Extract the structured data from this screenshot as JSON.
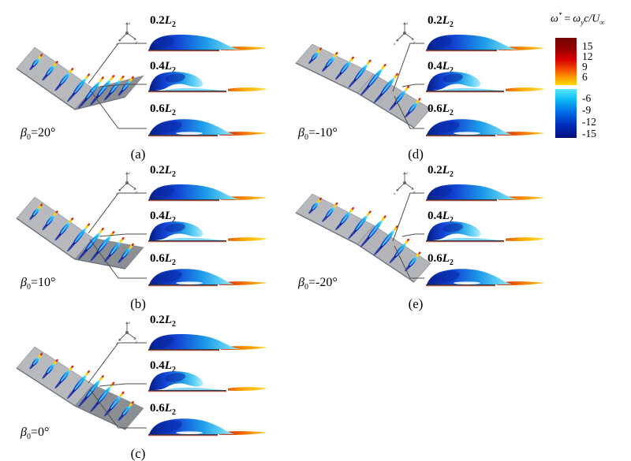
{
  "colorbar": {
    "title": {
      "omega": "ω",
      "star": "*",
      "equals": "=",
      "omega2": "ω",
      "sub_y": "y",
      "c_slash_u": "c/U",
      "sub_inf": "∞"
    },
    "ticks_pos": [
      "15",
      "12",
      "9",
      "6"
    ],
    "ticks_neg": [
      "-6",
      "-9",
      "-12",
      "-15"
    ],
    "colors": {
      "pos_top": "#6f0502",
      "pos_bottom": "#ffd90a",
      "neg_top": "#59eafa",
      "neg_bottom": "#000e78"
    }
  },
  "axes_triad": {
    "x": "x",
    "y": "y",
    "z": "z"
  },
  "vortex_colors": {
    "deep_blue": "#0a1798",
    "blue": "#1a4ae0",
    "cyan": "#22b8f0",
    "wake_red": "#c21b00",
    "wake_orange": "#f07c00",
    "wake_yellow": "#ffd41c",
    "wing_gray": "#b7b9bd",
    "wing_gray_dark": "#8b8e93"
  },
  "panels": [
    {
      "id": "a",
      "letter": "(a)",
      "beta_symbol": "β",
      "beta_sub": "0",
      "beta_value": "=20°",
      "beta_deg": 20,
      "slices": [
        {
          "frac": "0.2",
          "symbol": "L",
          "sub": "2"
        },
        {
          "frac": "0.4",
          "symbol": "L",
          "sub": "2"
        },
        {
          "frac": "0.6",
          "symbol": "L",
          "sub": "2"
        }
      ]
    },
    {
      "id": "b",
      "letter": "(b)",
      "beta_symbol": "β",
      "beta_sub": "0",
      "beta_value": "=10°",
      "beta_deg": 10,
      "slices": [
        {
          "frac": "0.2",
          "symbol": "L",
          "sub": "2"
        },
        {
          "frac": "0.4",
          "symbol": "L",
          "sub": "2"
        },
        {
          "frac": "0.6",
          "symbol": "L",
          "sub": "2"
        }
      ]
    },
    {
      "id": "c",
      "letter": "(c)",
      "beta_symbol": "β",
      "beta_sub": "0",
      "beta_value": "=0°",
      "beta_deg": 0,
      "slices": [
        {
          "frac": "0.2",
          "symbol": "L",
          "sub": "2"
        },
        {
          "frac": "0.4",
          "symbol": "L",
          "sub": "2"
        },
        {
          "frac": "0.6",
          "symbol": "L",
          "sub": "2"
        }
      ]
    },
    {
      "id": "d",
      "letter": "(d)",
      "beta_symbol": "β",
      "beta_sub": "0",
      "beta_value": "=-10°",
      "beta_deg": -10,
      "slices": [
        {
          "frac": "0.2",
          "symbol": "L",
          "sub": "2"
        },
        {
          "frac": "0.4",
          "symbol": "L",
          "sub": "2"
        },
        {
          "frac": "0.6",
          "symbol": "L",
          "sub": "2"
        }
      ]
    },
    {
      "id": "e",
      "letter": "(e)",
      "beta_symbol": "β",
      "beta_sub": "0",
      "beta_value": "=-20°",
      "beta_deg": -20,
      "slices": [
        {
          "frac": "0.2",
          "symbol": "L",
          "sub": "2"
        },
        {
          "frac": "0.4",
          "symbol": "L",
          "sub": "2"
        },
        {
          "frac": "0.6",
          "symbol": "L",
          "sub": "2"
        }
      ]
    }
  ]
}
